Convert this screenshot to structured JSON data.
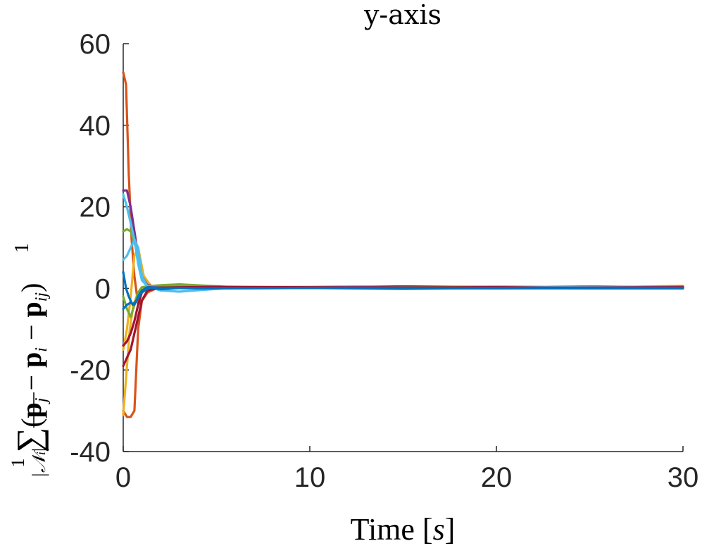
{
  "chart_data": {
    "type": "line",
    "title": "y-axis",
    "xlabel": "Time [s]",
    "ylabel": "1/|N_i| Σ(p_j − p_i − p_ij)",
    "xlim": [
      0,
      30
    ],
    "ylim": [
      -40,
      60
    ],
    "xticks": [
      0,
      10,
      20,
      30
    ],
    "yticks": [
      -40,
      -20,
      0,
      20,
      40,
      60
    ],
    "xtick_labels": [
      "0",
      "10",
      "20",
      "30"
    ],
    "ytick_labels": [
      "-40",
      "-20",
      "0",
      "20",
      "40",
      "60"
    ],
    "grid": false,
    "legend": "none",
    "series": [
      {
        "color": "#D95319",
        "x": [
          0,
          0.15,
          0.3,
          0.45,
          0.6,
          0.8,
          1.0,
          1.3,
          2,
          4,
          8,
          15,
          22,
          30
        ],
        "y": [
          53,
          50,
          28,
          12,
          3,
          -4,
          -3,
          -1,
          0.5,
          0.2,
          0.1,
          0.2,
          0.1,
          0.3
        ]
      },
      {
        "color": "#D95319",
        "x": [
          0,
          0.2,
          0.4,
          0.6,
          0.8,
          1.0,
          1.3,
          1.6,
          2.5,
          5,
          10,
          18,
          25,
          30
        ],
        "y": [
          -30,
          -31.5,
          -31.5,
          -30,
          -10,
          -3,
          -1,
          0.3,
          0.2,
          0.4,
          0.1,
          0.2,
          0.5,
          0.3
        ]
      },
      {
        "color": "#EDB120",
        "x": [
          0,
          0.15,
          0.35,
          0.55,
          0.8,
          1.0,
          1.4,
          2,
          5,
          10,
          15,
          20,
          25,
          30
        ],
        "y": [
          -31,
          -22,
          -10,
          -4,
          -1,
          0.2,
          0.6,
          0.4,
          0.3,
          0.4,
          0.2,
          0.5,
          0.3,
          0.6
        ]
      },
      {
        "color": "#EDB120",
        "x": [
          0,
          0.2,
          0.4,
          0.6,
          0.8,
          1.1,
          1.5,
          2.5,
          6,
          12,
          18,
          24,
          30
        ],
        "y": [
          -15,
          -10,
          -2,
          8,
          10,
          3,
          0.5,
          0.4,
          0.2,
          0.5,
          0.1,
          0.3,
          0.4
        ]
      },
      {
        "color": "#7E2F8E",
        "x": [
          0,
          0.2,
          0.4,
          0.6,
          0.8,
          1.0,
          1.3,
          2,
          5,
          10,
          15,
          20,
          25,
          30
        ],
        "y": [
          24,
          24,
          20,
          14,
          8,
          3,
          0.8,
          0.3,
          0.3,
          0.2,
          0.5,
          0.3,
          0.2,
          0.4
        ]
      },
      {
        "color": "#77AC30",
        "x": [
          0,
          0.2,
          0.4,
          0.6,
          0.8,
          1.0,
          1.3,
          2,
          3,
          6,
          12,
          18,
          24,
          30
        ],
        "y": [
          14,
          14.5,
          14,
          11,
          9,
          3,
          0.5,
          0.8,
          1,
          0.3,
          0.2,
          0.3,
          0.1,
          0.2
        ]
      },
      {
        "color": "#77AC30",
        "x": [
          0,
          0.2,
          0.4,
          0.6,
          0.8,
          1.0,
          1.3,
          2,
          5,
          10,
          20,
          30
        ],
        "y": [
          -2,
          -5,
          -7,
          -4,
          -1,
          0.3,
          0.5,
          0.6,
          0.3,
          0.2,
          0.1,
          0.2
        ]
      },
      {
        "color": "#4DBEEE",
        "x": [
          0,
          0.2,
          0.4,
          0.6,
          0.8,
          1.0,
          1.3,
          2,
          3,
          6,
          12,
          18,
          24,
          30
        ],
        "y": [
          23,
          20,
          16,
          12,
          10,
          3,
          0.5,
          -0.5,
          -0.8,
          0.2,
          0.3,
          0.1,
          0.4,
          0.2
        ]
      },
      {
        "color": "#4DBEEE",
        "x": [
          0,
          0.2,
          0.4,
          0.6,
          0.8,
          1.0,
          1.3,
          2,
          5,
          10,
          20,
          30
        ],
        "y": [
          7,
          8,
          10,
          12,
          6,
          2,
          0.5,
          0.2,
          0.3,
          0.1,
          0.2,
          0.3
        ]
      },
      {
        "color": "#A2142F",
        "x": [
          0,
          0.2,
          0.4,
          0.6,
          0.8,
          1.0,
          1.3,
          2,
          5,
          10,
          15,
          20,
          25,
          30
        ],
        "y": [
          -19,
          -17,
          -15,
          -11,
          -7,
          -3,
          -0.5,
          0.2,
          0.4,
          0.3,
          0.2,
          0.3,
          0.1,
          0.2
        ]
      },
      {
        "color": "#A2142F",
        "x": [
          0,
          0.2,
          0.4,
          0.6,
          0.8,
          1.0,
          1.4,
          2,
          5,
          10,
          20,
          30
        ],
        "y": [
          -14,
          -13,
          -11,
          -8,
          -4,
          -1,
          0.3,
          0.2,
          0.3,
          0.2,
          0.1,
          0.3
        ]
      },
      {
        "color": "#0072BD",
        "x": [
          0,
          0.15,
          0.3,
          0.5,
          0.7,
          1.0,
          1.4,
          2,
          3,
          5,
          10,
          15,
          20,
          25,
          30
        ],
        "y": [
          4,
          0,
          -2,
          -4,
          -3,
          -1,
          0.2,
          -0.2,
          0.1,
          0.0,
          0.1,
          -0.1,
          0.1,
          0.0,
          0.0
        ]
      },
      {
        "color": "#0072BD",
        "x": [
          0,
          0.2,
          0.4,
          0.6,
          0.8,
          1.0,
          1.3,
          2,
          5,
          10,
          20,
          30
        ],
        "y": [
          -5,
          -4,
          -3.5,
          -4,
          -2,
          -0.5,
          0.3,
          0.1,
          0.0,
          0.1,
          0.0,
          0.1
        ]
      }
    ]
  }
}
